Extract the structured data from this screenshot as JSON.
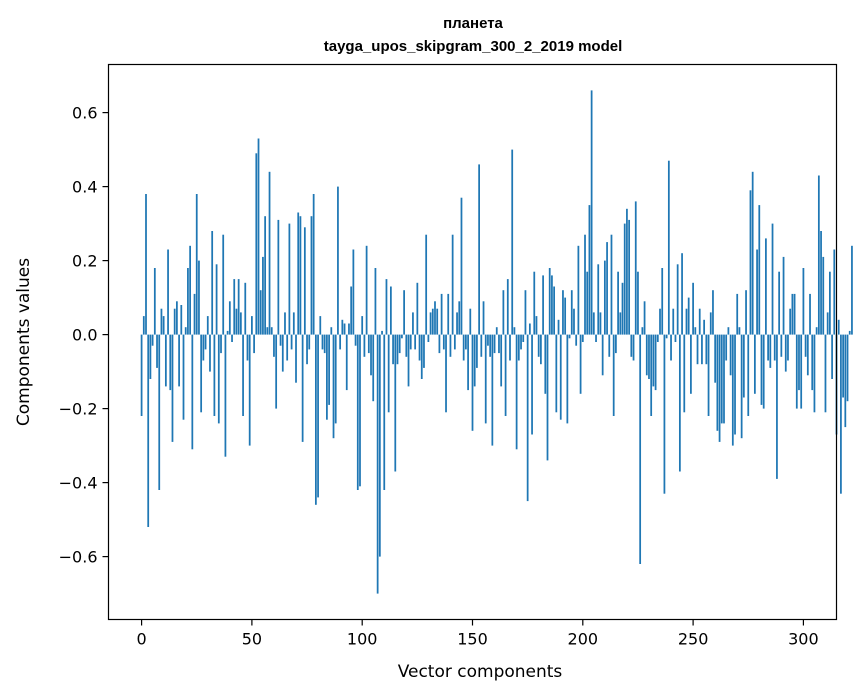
{
  "chart_data": {
    "type": "bar",
    "title": "планета",
    "subtitle": "tayga_upos_skipgram_300_2_2019 model",
    "xlabel": "Vector components",
    "ylabel": "Components values",
    "xlim": [
      -15,
      315
    ],
    "ylim": [
      -0.77,
      0.73
    ],
    "xticks": [
      0,
      50,
      100,
      150,
      200,
      250,
      300
    ],
    "yticks": [
      -0.6,
      -0.4,
      -0.2,
      0.0,
      0.2,
      0.4,
      0.6
    ],
    "ytick_labels": [
      "−0.6",
      "−0.4",
      "−0.2",
      "0.0",
      "0.2",
      "0.4",
      "0.6"
    ],
    "bar_color": "#1f77b4",
    "grid": false,
    "values": [
      -0.22,
      0.05,
      0.38,
      -0.52,
      -0.12,
      -0.03,
      0.18,
      -0.09,
      -0.42,
      0.07,
      0.05,
      -0.14,
      0.23,
      -0.15,
      -0.29,
      0.07,
      0.09,
      -0.14,
      0.08,
      -0.23,
      0.02,
      0.18,
      0.24,
      -0.31,
      0.11,
      0.38,
      0.2,
      -0.21,
      -0.07,
      -0.04,
      0.05,
      -0.1,
      0.28,
      -0.22,
      0.19,
      -0.24,
      -0.05,
      0.27,
      -0.33,
      0.01,
      0.09,
      -0.02,
      0.15,
      0.07,
      0.15,
      0.06,
      -0.22,
      0.14,
      -0.07,
      -0.3,
      0.05,
      -0.05,
      0.49,
      0.53,
      0.12,
      0.21,
      0.32,
      0.02,
      0.44,
      0.02,
      -0.06,
      -0.2,
      0.31,
      -0.03,
      -0.1,
      0.06,
      -0.07,
      0.3,
      -0.04,
      0.06,
      -0.13,
      0.33,
      0.32,
      -0.29,
      0.29,
      -0.08,
      -0.04,
      0.32,
      0.38,
      -0.46,
      -0.44,
      0.05,
      -0.04,
      -0.05,
      -0.23,
      -0.19,
      0.02,
      -0.28,
      -0.24,
      0.4,
      -0.04,
      0.04,
      0.03,
      -0.15,
      0.03,
      0.13,
      0.23,
      -0.03,
      -0.42,
      -0.41,
      0.05,
      -0.06,
      0.24,
      -0.05,
      -0.11,
      -0.18,
      0.18,
      -0.7,
      -0.6,
      0.01,
      -0.42,
      0.15,
      -0.21,
      0.13,
      -0.08,
      -0.37,
      -0.08,
      -0.05,
      -0.01,
      0.12,
      -0.06,
      -0.14,
      -0.04,
      0.06,
      -0.04,
      0.14,
      -0.07,
      -0.12,
      -0.09,
      0.27,
      -0.02,
      0.06,
      0.07,
      0.09,
      0.07,
      -0.05,
      0.11,
      -0.04,
      -0.21,
      0.11,
      -0.06,
      0.27,
      -0.04,
      0.06,
      0.09,
      0.37,
      -0.07,
      -0.04,
      -0.15,
      0.07,
      -0.26,
      -0.14,
      -0.09,
      0.46,
      -0.06,
      0.09,
      -0.24,
      -0.03,
      -0.06,
      -0.3,
      -0.05,
      0.02,
      -0.05,
      -0.14,
      0.12,
      -0.22,
      0.15,
      -0.07,
      0.5,
      0.02,
      -0.31,
      -0.07,
      -0.04,
      -0.02,
      0.12,
      -0.45,
      0.03,
      -0.27,
      0.17,
      0.05,
      -0.06,
      -0.08,
      0.16,
      -0.16,
      -0.34,
      0.18,
      0.16,
      0.13,
      -0.21,
      0.04,
      -0.23,
      0.12,
      0.1,
      -0.24,
      -0.01,
      0.12,
      0.07,
      -0.03,
      0.24,
      -0.16,
      -0.02,
      0.27,
      0.17,
      0.35,
      0.66,
      0.06,
      -0.02,
      0.19,
      0.06,
      -0.11,
      0.2,
      0.25,
      -0.06,
      0.27,
      -0.22,
      -0.05,
      0.17,
      0.06,
      0.14,
      0.3,
      0.34,
      0.31,
      -0.06,
      -0.07,
      0.36,
      0.17,
      -0.62,
      0.02,
      0.09,
      -0.11,
      -0.12,
      -0.22,
      -0.14,
      -0.15,
      -0.02,
      0.07,
      0.18,
      -0.43,
      -0.01,
      0.47,
      -0.07,
      0.07,
      -0.02,
      0.19,
      -0.37,
      0.22,
      -0.21,
      0.07,
      0.1,
      -0.16,
      0.14,
      0.02,
      -0.08,
      0.07,
      -0.08,
      0.04,
      -0.08,
      -0.22,
      0.06,
      0.12,
      -0.13,
      -0.26,
      -0.29,
      -0.24,
      -0.24,
      -0.07,
      0.02,
      -0.11,
      -0.3,
      -0.27,
      0.11,
      0.02,
      -0.28,
      -0.17,
      0.12,
      -0.22,
      0.39,
      0.44,
      -0.16,
      0.23,
      0.35,
      -0.19,
      -0.2,
      0.26,
      -0.07,
      -0.09,
      0.3,
      -0.07,
      -0.39,
      0.17,
      -0.06,
      0.21,
      -0.1,
      -0.07,
      0.07,
      0.11,
      0.11,
      -0.2,
      -0.15,
      -0.2,
      0.18,
      -0.06,
      -0.11,
      0.11,
      -0.15,
      -0.21,
      0.02,
      0.43,
      0.28,
      0.21,
      -0.21,
      0.06,
      0.17,
      -0.12,
      0.23,
      -0.27,
      0.04,
      -0.43,
      -0.17,
      -0.25,
      -0.18,
      0.01,
      0.24
    ]
  }
}
